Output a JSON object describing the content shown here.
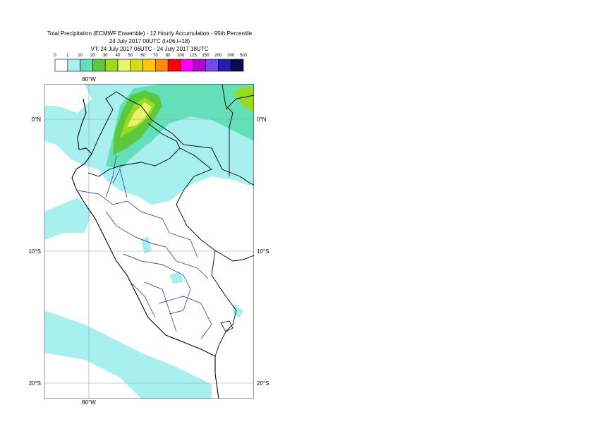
{
  "header": {
    "lines": [
      "Total Precipitation (ECMWF Ensemble) - 12 Hourly Accumulation - 95th Percentile",
      "24 July 2017 00UTC (t+06,t+18)",
      "VT: 24 July 2017 06UTC - 24 July 2017 18UTC"
    ]
  },
  "legend": {
    "labels": [
      0,
      1,
      10,
      20,
      30,
      40,
      50,
      60,
      70,
      80,
      100,
      125,
      150,
      200,
      300,
      500
    ],
    "colors": [
      "#ffffff",
      "#a8f0f0",
      "#64e0b8",
      "#5cc83c",
      "#98dc1e",
      "#e8f46a",
      "#d4dc14",
      "#ffc800",
      "#ff8c00",
      "#ff0000",
      "#ff00ff",
      "#b400d2",
      "#7846f0",
      "#1e1eb4",
      "#0a0a50"
    ]
  },
  "map": {
    "lon_labels": [
      "80°W"
    ],
    "lat_labels": [
      "0°N",
      "10°S",
      "20°S"
    ]
  }
}
